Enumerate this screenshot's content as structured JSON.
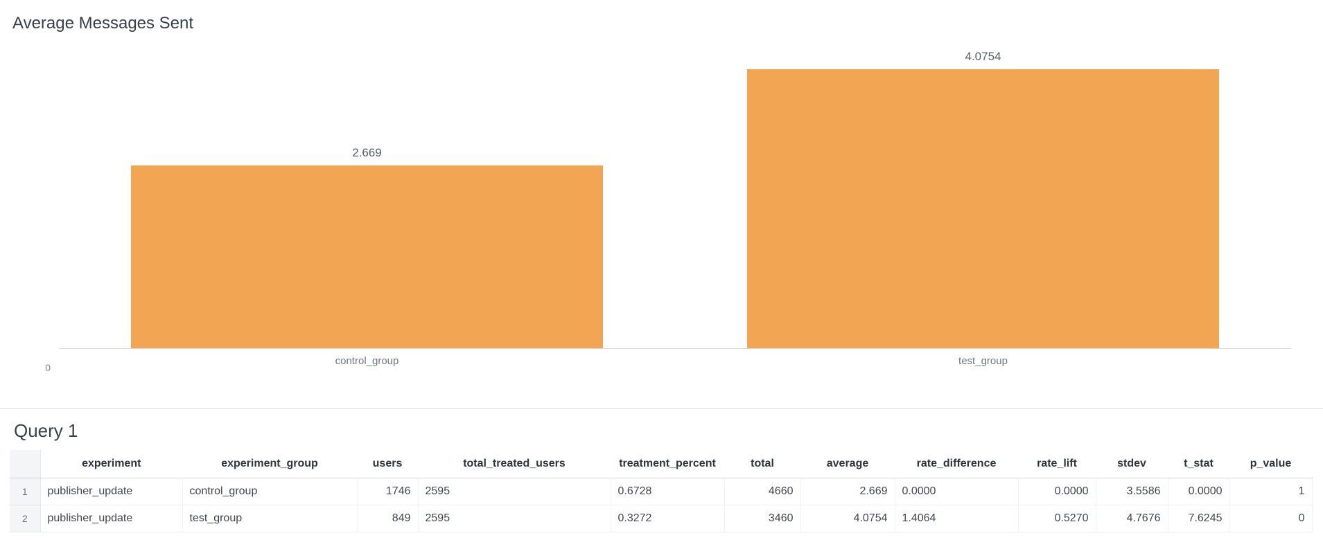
{
  "chart": {
    "y_zero_label": "0"
  },
  "chart_data": {
    "type": "bar",
    "title": "Average Messages Sent",
    "categories": [
      "control_group",
      "test_group"
    ],
    "values": [
      2.669,
      4.0754
    ],
    "value_labels": [
      "2.669",
      "4.0754"
    ],
    "xlabel": "",
    "ylabel": "",
    "ylim": [
      0,
      4.0754
    ],
    "y_ticks": [
      "0"
    ],
    "bar_color": "#F2A654",
    "grid": false,
    "legend": false
  },
  "query_section": {
    "title": "Query 1",
    "table": {
      "columns": [
        "experiment",
        "experiment_group",
        "users",
        "total_treated_users",
        "treatment_percent",
        "total",
        "average",
        "rate_difference",
        "rate_lift",
        "stdev",
        "t_stat",
        "p_value"
      ],
      "row_indices": [
        "1",
        "2"
      ],
      "rows": [
        [
          "publisher_update",
          "control_group",
          "1746",
          "2595",
          "0.6728",
          "4660",
          "2.669",
          "0.0000",
          "0.0000",
          "3.5586",
          "0.0000",
          "1"
        ],
        [
          "publisher_update",
          "test_group",
          "849",
          "2595",
          "0.3272",
          "3460",
          "4.0754",
          "1.4064",
          "0.5270",
          "4.7676",
          "7.6245",
          "0"
        ]
      ]
    }
  }
}
